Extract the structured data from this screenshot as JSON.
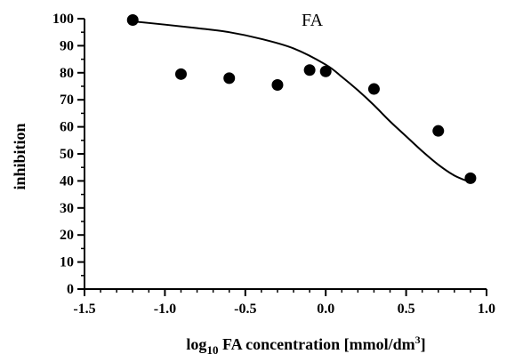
{
  "chart_data": {
    "type": "scatter",
    "title": "FA",
    "xlabel": {
      "prefix": "log",
      "subscript": "10",
      "main": " FA concentration  [mmol/dm",
      "superscript": "3",
      "suffix": "]"
    },
    "ylabel": "inhibition",
    "xlim": [
      -1.5,
      1.0
    ],
    "ylim": [
      0,
      100
    ],
    "xticks": [
      -1.5,
      -1.0,
      -0.5,
      0.0,
      0.5,
      1.0
    ],
    "xtick_labels": [
      "-1.5",
      "-1.0",
      "-0.5",
      "0.0",
      "0.5",
      "1.0"
    ],
    "yticks": [
      0,
      10,
      20,
      30,
      40,
      50,
      60,
      70,
      80,
      90,
      100
    ],
    "ytick_labels": [
      "0",
      "10",
      "20",
      "30",
      "40",
      "50",
      "60",
      "70",
      "80",
      "90",
      "100"
    ],
    "x_minor_step": 0.1,
    "y_minor_step": 5,
    "grid": false,
    "legend": "none",
    "points": [
      {
        "x": -1.2,
        "y": 99.5
      },
      {
        "x": -0.9,
        "y": 79.5
      },
      {
        "x": -0.6,
        "y": 78
      },
      {
        "x": -0.3,
        "y": 75.5
      },
      {
        "x": -0.1,
        "y": 81
      },
      {
        "x": 0.0,
        "y": 80.5
      },
      {
        "x": 0.3,
        "y": 74
      },
      {
        "x": 0.7,
        "y": 58.5
      },
      {
        "x": 0.9,
        "y": 41
      }
    ],
    "fit_curve": {
      "type": "sigmoid",
      "x": [
        -1.2,
        -1.0,
        -0.8,
        -0.6,
        -0.4,
        -0.2,
        0.0,
        0.1,
        0.2,
        0.3,
        0.4,
        0.5,
        0.6,
        0.7,
        0.8,
        0.9
      ],
      "y": [
        99,
        97.8,
        96.5,
        95,
        92.5,
        89,
        83,
        78.5,
        73.5,
        68,
        62,
        56.5,
        51,
        46,
        42,
        39.5
      ]
    },
    "colors": {
      "points": "#000000",
      "curve": "#000000",
      "axes": "#000000"
    }
  }
}
